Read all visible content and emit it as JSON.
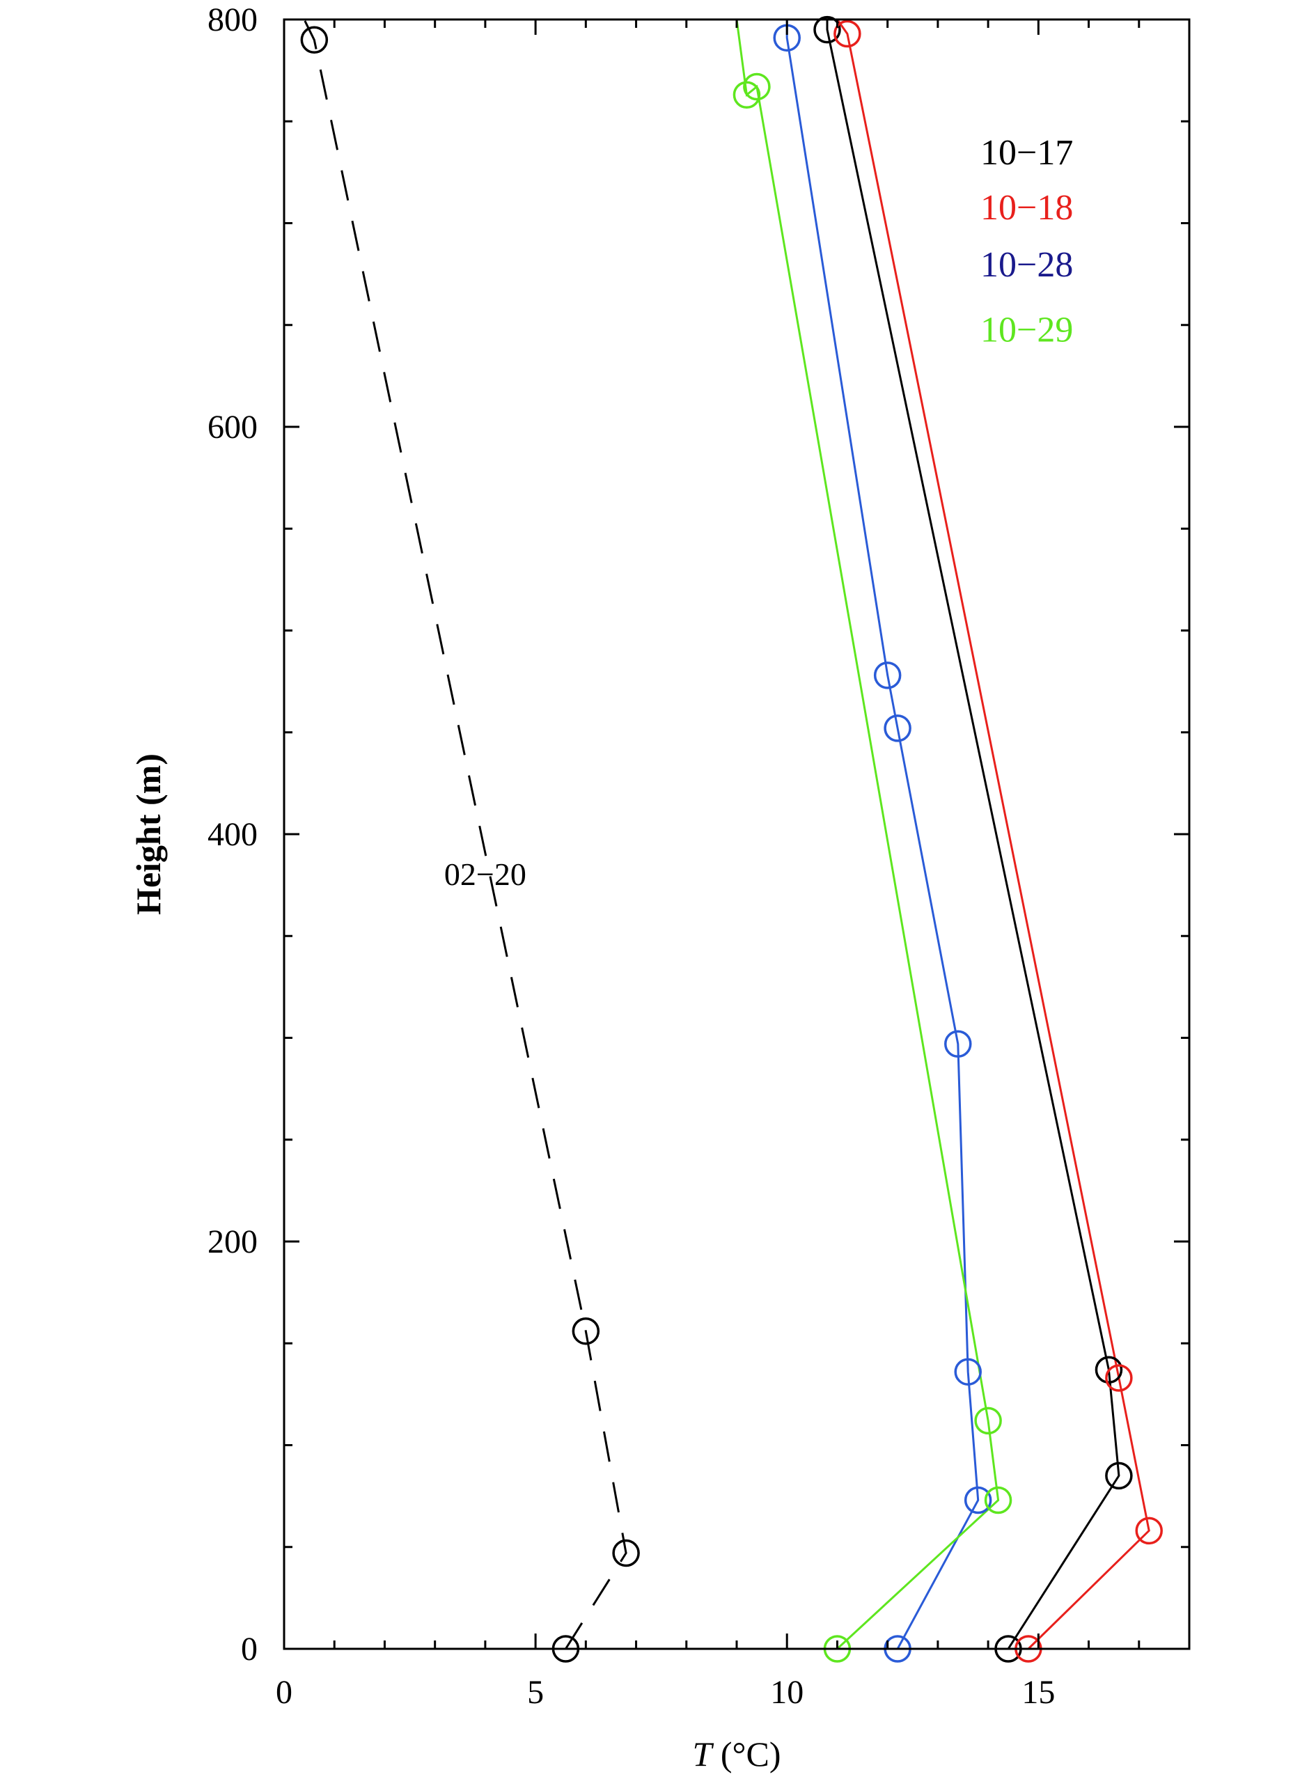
{
  "chart_data": {
    "type": "line",
    "title": "",
    "xlabel_italic": "T",
    "xlabel_rest": " (°C)",
    "ylabel": "Height (m)",
    "xlim": [
      0,
      18
    ],
    "ylim": [
      0,
      800
    ],
    "x_ticks": [
      0,
      5,
      10,
      15
    ],
    "x_tick_labels": [
      "0",
      "5",
      "10",
      "15"
    ],
    "x_minor_ticks": [
      1,
      2,
      3,
      4,
      6,
      7,
      8,
      9,
      11,
      12,
      13,
      14,
      16,
      17
    ],
    "y_ticks": [
      0,
      200,
      400,
      600,
      800
    ],
    "y_tick_labels": [
      "0",
      "200",
      "400",
      "600",
      "800"
    ],
    "y_minor_ticks": [
      50,
      100,
      150,
      250,
      300,
      350,
      450,
      500,
      550,
      650,
      700,
      750
    ],
    "grid": false,
    "legend_placement": "top-right",
    "series": [
      {
        "name": "10−17",
        "color": "#000000",
        "dash": "solid",
        "points": [
          [
            14.4,
            0
          ],
          [
            16.6,
            85
          ],
          [
            16.4,
            137
          ],
          [
            10.8,
            795
          ]
        ],
        "line_extends_to": [
          10.8,
          800
        ]
      },
      {
        "name": "10−18",
        "color": "#e8201c",
        "dash": "solid",
        "points": [
          [
            14.8,
            0
          ],
          [
            17.2,
            58
          ],
          [
            16.6,
            133
          ],
          [
            11.2,
            793
          ]
        ],
        "line_extends_to": [
          11.0,
          800
        ]
      },
      {
        "name": "10−28",
        "legend_color": "#1a1a8c",
        "color": "#2a5bd7",
        "dash": "solid",
        "points": [
          [
            12.2,
            0
          ],
          [
            13.8,
            73
          ],
          [
            13.6,
            136
          ],
          [
            13.4,
            297
          ],
          [
            12.2,
            452
          ],
          [
            12.0,
            478
          ],
          [
            10.0,
            791
          ]
        ],
        "line_extends_to": [
          10.0,
          800
        ]
      },
      {
        "name": "10−29",
        "color": "#5ee61f",
        "dash": "solid",
        "points": [
          [
            11.0,
            0
          ],
          [
            14.2,
            73
          ],
          [
            14.0,
            112
          ],
          [
            9.4,
            767
          ],
          [
            9.2,
            763
          ]
        ],
        "line_extends_to": [
          9.0,
          800
        ]
      },
      {
        "name": "02−20",
        "color": "#000000",
        "dash": "dashed",
        "points": [
          [
            5.6,
            0
          ],
          [
            6.8,
            47
          ],
          [
            6.0,
            156
          ],
          [
            0.6,
            790
          ]
        ],
        "line_extends_to": [
          0.4,
          800
        ],
        "label": "02−20",
        "label_at": [
          4.0,
          375
        ]
      }
    ]
  }
}
